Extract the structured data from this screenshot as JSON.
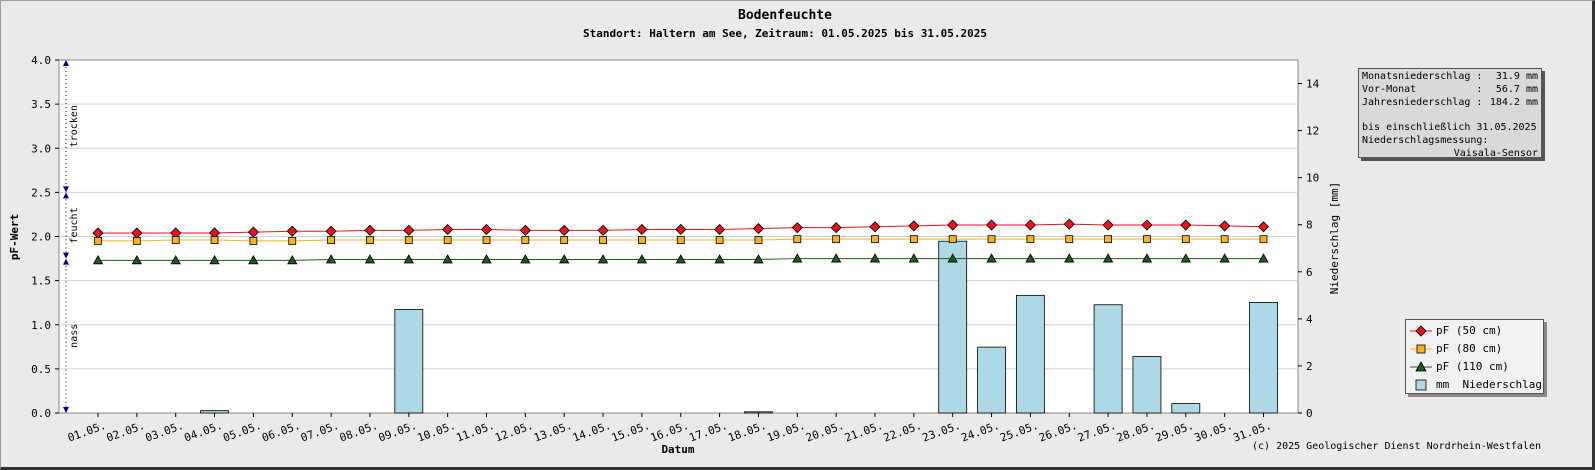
{
  "chart_data": {
    "type": "line",
    "title": "Bodenfeuchte",
    "subtitle": "Standort: Haltern am See, Zeitraum: 01.05.2025 bis 31.05.2025",
    "xlabel": "Datum",
    "ylabel": "pF-Wert",
    "y2label": "Niederschlag [mm]",
    "categories": [
      "01.05.",
      "02.05.",
      "03.05.",
      "04.05.",
      "05.05.",
      "06.05.",
      "07.05.",
      "08.05.",
      "09.05.",
      "10.05.",
      "11.05.",
      "12.05.",
      "13.05.",
      "14.05.",
      "15.05.",
      "16.05.",
      "17.05.",
      "18.05.",
      "19.05.",
      "20.05.",
      "21.05.",
      "22.05.",
      "23.05.",
      "24.05.",
      "25.05.",
      "26.05.",
      "27.05.",
      "28.05.",
      "29.05.",
      "30.05.",
      "31.05."
    ],
    "ylim": [
      0,
      4
    ],
    "yticks": [
      "0.0",
      "0.5",
      "1.0",
      "1.5",
      "2.0",
      "2.5",
      "3.0",
      "3.5",
      "4.0"
    ],
    "y2lim": [
      0,
      15
    ],
    "y2ticks": [
      "0",
      "2",
      "4",
      "6",
      "8",
      "10",
      "12",
      "14"
    ],
    "grid": true,
    "zones": [
      {
        "label": "trocken",
        "from": 2.5,
        "to": 4.0
      },
      {
        "label": "feucht",
        "from": 1.75,
        "to": 2.5
      },
      {
        "label": "nass",
        "from": 0.0,
        "to": 1.75
      }
    ],
    "series": [
      {
        "name": "pF (50 cm)",
        "color": "#e8141e",
        "marker": "diamond",
        "axis": "left",
        "values": [
          2.04,
          2.04,
          2.04,
          2.04,
          2.05,
          2.06,
          2.06,
          2.07,
          2.07,
          2.08,
          2.08,
          2.07,
          2.07,
          2.07,
          2.08,
          2.08,
          2.08,
          2.09,
          2.1,
          2.1,
          2.11,
          2.12,
          2.13,
          2.13,
          2.13,
          2.14,
          2.13,
          2.13,
          2.13,
          2.12,
          2.11
        ]
      },
      {
        "name": "pF (80 cm)",
        "color": "#f5b41e",
        "marker": "square",
        "axis": "left",
        "values": [
          1.95,
          1.95,
          1.96,
          1.96,
          1.95,
          1.95,
          1.96,
          1.96,
          1.96,
          1.96,
          1.96,
          1.96,
          1.96,
          1.96,
          1.96,
          1.96,
          1.96,
          1.96,
          1.97,
          1.97,
          1.97,
          1.97,
          1.97,
          1.97,
          1.97,
          1.97,
          1.97,
          1.97,
          1.97,
          1.97,
          1.97
        ]
      },
      {
        "name": "pF (110 cm)",
        "color": "#1e5a1e",
        "marker": "triangle",
        "axis": "left",
        "values": [
          1.73,
          1.73,
          1.73,
          1.73,
          1.73,
          1.73,
          1.74,
          1.74,
          1.74,
          1.74,
          1.74,
          1.74,
          1.74,
          1.74,
          1.74,
          1.74,
          1.74,
          1.74,
          1.75,
          1.75,
          1.75,
          1.75,
          1.75,
          1.75,
          1.75,
          1.75,
          1.75,
          1.75,
          1.75,
          1.75,
          1.75
        ]
      },
      {
        "name": "mm  Niederschlag",
        "color": "#add8e6",
        "type": "bar",
        "axis": "right",
        "values": [
          0,
          0,
          0,
          0.1,
          0,
          0,
          0,
          0,
          4.4,
          0,
          0,
          0,
          0,
          0,
          0,
          0,
          0,
          0.05,
          0,
          0,
          0,
          0,
          7.3,
          2.8,
          5.0,
          0,
          4.6,
          2.4,
          0.4,
          0,
          4.7
        ]
      }
    ],
    "legend_position": "right"
  },
  "info": {
    "rows": [
      {
        "label": "Monatsniederschlag :",
        "value": "31.9 mm"
      },
      {
        "label": "Vor-Monat          :",
        "value": "56.7 mm"
      },
      {
        "label": "Jahresniederschlag :",
        "value": "184.2 mm"
      }
    ],
    "note_line1": "bis einschließlich 31.05.2025",
    "note_line2": "Niederschlagsmessung:",
    "note_line3": "Vaisala-Sensor"
  },
  "copyright": "(c) 2025 Geologischer Dienst Nordrhein-Westfalen",
  "colors": {
    "background": "#eceae8",
    "plot_background": "#ffffff",
    "grid": "#d0d0d0",
    "zone_arrow": "#00008b"
  }
}
